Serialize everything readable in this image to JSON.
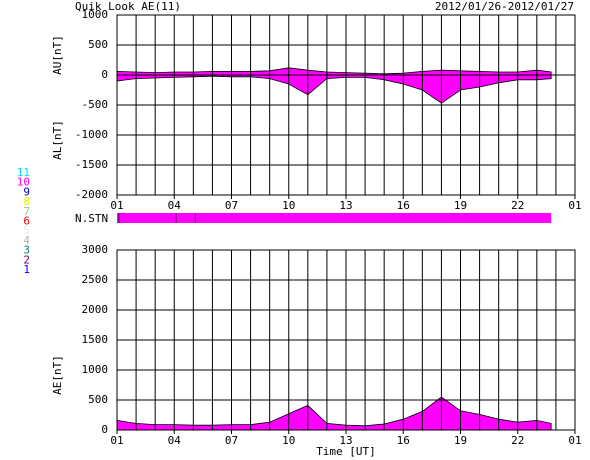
{
  "title": "Quik Look AE(11)",
  "date_range": "2012/01/26-2012/01/27",
  "stations": [
    {
      "label": "11",
      "color": "#00e0e0"
    },
    {
      "label": "10",
      "color": "#ff00ff"
    },
    {
      "label": "9",
      "color": "#0000c0"
    },
    {
      "label": "8",
      "color": "#f0f000"
    },
    {
      "label": "7",
      "color": "#90d090"
    },
    {
      "label": "6",
      "color": "#e00000"
    },
    {
      "label": "5",
      "color": "#e8e8e8"
    },
    {
      "label": "4",
      "color": "#b0b0b0"
    },
    {
      "label": "3",
      "color": "#008080"
    },
    {
      "label": "2",
      "color": "#800080"
    },
    {
      "label": "1",
      "color": "#0000ff"
    }
  ],
  "nstn": {
    "label": "N.STN",
    "color": "#ff00ff"
  },
  "chart_data": [
    {
      "type": "area",
      "ylabels": [
        "AU[nT]",
        "AL[nT]"
      ],
      "x": [
        0,
        1,
        2,
        3,
        4,
        5,
        6,
        7,
        8,
        9,
        10,
        11,
        12,
        13,
        14,
        15,
        16,
        17,
        18,
        19,
        20,
        21,
        22,
        22.75
      ],
      "series": [
        {
          "name": "AU",
          "color": "#ff00ff",
          "values": [
            60,
            50,
            40,
            50,
            50,
            60,
            60,
            60,
            70,
            120,
            80,
            50,
            40,
            30,
            20,
            30,
            60,
            80,
            70,
            60,
            50,
            50,
            80,
            50
          ]
        },
        {
          "name": "AL",
          "color": "#ff00ff",
          "values": [
            -100,
            -60,
            -50,
            -40,
            -30,
            -20,
            -30,
            -30,
            -60,
            -150,
            -330,
            -60,
            -40,
            -40,
            -80,
            -150,
            -250,
            -470,
            -250,
            -200,
            -130,
            -80,
            -80,
            -60
          ]
        }
      ],
      "xlim": [
        0,
        24
      ],
      "ylim": [
        -2000,
        1000
      ],
      "yticks": [
        -2000,
        -1500,
        -1000,
        -500,
        0,
        500,
        1000
      ],
      "xticks": [
        {
          "value": 0,
          "label": "01"
        },
        {
          "value": 3,
          "label": "04"
        },
        {
          "value": 6,
          "label": "07"
        },
        {
          "value": 9,
          "label": "10"
        },
        {
          "value": 12,
          "label": "13"
        },
        {
          "value": 15,
          "label": "16"
        },
        {
          "value": 18,
          "label": "19"
        },
        {
          "value": 21,
          "label": "22"
        },
        {
          "value": 24,
          "label": "01"
        }
      ],
      "xgrid": [
        0,
        1,
        2,
        3,
        4,
        5,
        6,
        7,
        8,
        9,
        10,
        11,
        12,
        13,
        14,
        15,
        16,
        17,
        18,
        19,
        20,
        21,
        22,
        23,
        24
      ]
    },
    {
      "type": "area",
      "ylabels": [
        "AE[nT]"
      ],
      "xlabel": "Time [UT]",
      "x": [
        0,
        1,
        2,
        3,
        4,
        5,
        6,
        7,
        8,
        9,
        10,
        11,
        12,
        13,
        14,
        15,
        16,
        17,
        18,
        19,
        20,
        21,
        22,
        22.75
      ],
      "series": [
        {
          "name": "AE",
          "color": "#ff00ff",
          "values": [
            160,
            110,
            90,
            90,
            80,
            80,
            90,
            90,
            130,
            270,
            410,
            110,
            80,
            70,
            100,
            180,
            310,
            550,
            320,
            260,
            180,
            130,
            160,
            110
          ]
        }
      ],
      "xlim": [
        0,
        24
      ],
      "ylim": [
        0,
        3000
      ],
      "yticks": [
        0,
        500,
        1000,
        1500,
        2000,
        2500,
        3000
      ],
      "xticks": [
        {
          "value": 0,
          "label": "01"
        },
        {
          "value": 3,
          "label": "04"
        },
        {
          "value": 6,
          "label": "07"
        },
        {
          "value": 9,
          "label": "10"
        },
        {
          "value": 12,
          "label": "13"
        },
        {
          "value": 15,
          "label": "16"
        },
        {
          "value": 18,
          "label": "19"
        },
        {
          "value": 21,
          "label": "22"
        },
        {
          "value": 24,
          "label": "01"
        }
      ],
      "xgrid": [
        0,
        1,
        2,
        3,
        4,
        5,
        6,
        7,
        8,
        9,
        10,
        11,
        12,
        13,
        14,
        15,
        16,
        17,
        18,
        19,
        20,
        21,
        22,
        23,
        24
      ]
    }
  ]
}
